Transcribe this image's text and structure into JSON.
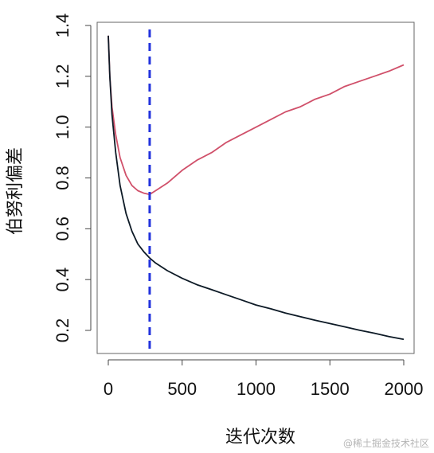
{
  "chart_data": {
    "type": "line",
    "xlabel": "迭代次数",
    "ylabel": "伯努利偏差",
    "xlim": [
      0,
      2000
    ],
    "ylim": [
      0.2,
      1.4
    ],
    "x_ticks": [
      "0",
      "500",
      "1000",
      "1500",
      "2000"
    ],
    "y_ticks": [
      "0.2",
      "0.4",
      "0.6",
      "0.8",
      "1.0",
      "1.2",
      "1.4"
    ],
    "grid": false,
    "legend": "none",
    "vline": {
      "x": 280,
      "color": "#2233dd",
      "style": "dashed"
    },
    "series": [
      {
        "color": "#d0506a",
        "x": [
          0,
          10,
          25,
          50,
          80,
          120,
          160,
          200,
          240,
          280,
          320,
          400,
          500,
          600,
          700,
          800,
          900,
          1000,
          1100,
          1200,
          1300,
          1400,
          1500,
          1600,
          1700,
          1800,
          1900,
          2000
        ],
        "y": [
          1.36,
          1.2,
          1.08,
          0.97,
          0.88,
          0.81,
          0.77,
          0.75,
          0.74,
          0.735,
          0.75,
          0.78,
          0.83,
          0.87,
          0.9,
          0.94,
          0.97,
          1.0,
          1.03,
          1.06,
          1.08,
          1.11,
          1.13,
          1.16,
          1.18,
          1.2,
          1.22,
          1.245
        ]
      },
      {
        "color": "#0d1a26",
        "x": [
          0,
          10,
          25,
          50,
          80,
          120,
          160,
          200,
          240,
          280,
          320,
          400,
          500,
          600,
          700,
          800,
          900,
          1000,
          1100,
          1200,
          1300,
          1400,
          1500,
          1600,
          1700,
          1800,
          1900,
          2000
        ],
        "y": [
          1.36,
          1.2,
          1.05,
          0.9,
          0.77,
          0.66,
          0.59,
          0.54,
          0.51,
          0.485,
          0.465,
          0.435,
          0.405,
          0.38,
          0.36,
          0.34,
          0.32,
          0.3,
          0.285,
          0.268,
          0.254,
          0.24,
          0.227,
          0.214,
          0.201,
          0.189,
          0.176,
          0.165
        ]
      }
    ]
  },
  "watermark": "@稀土掘金技术社区"
}
